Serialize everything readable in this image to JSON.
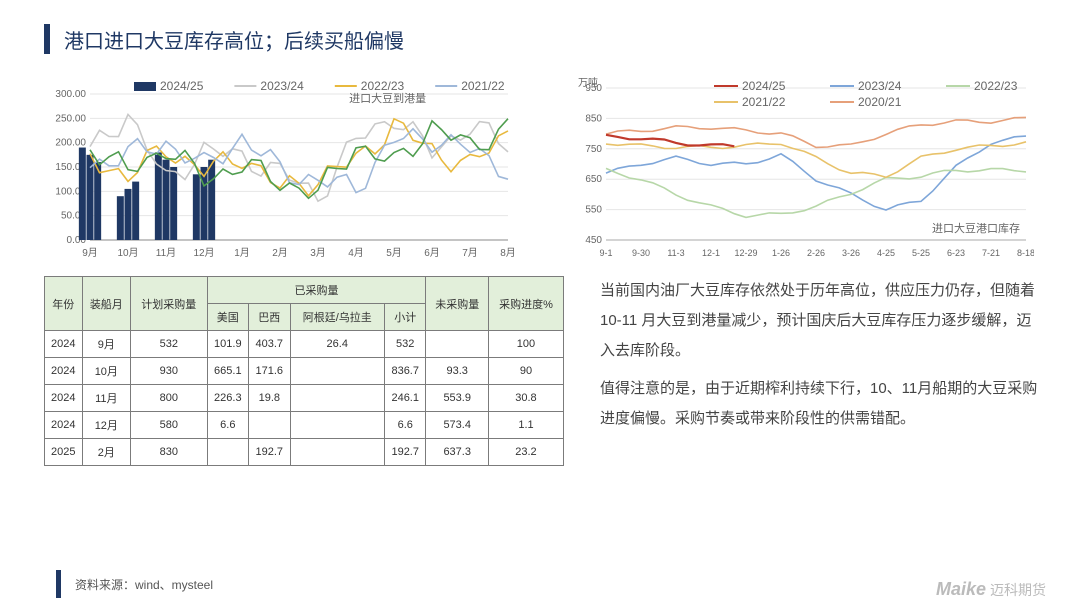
{
  "title": "港口进口大豆库存高位；后续买船偏慢",
  "source": "资料来源：wind、mysteel",
  "brand_en": "Maike",
  "brand_cn": "迈科期货",
  "chart1": {
    "type": "line+bar",
    "inner_title": "进口大豆到港量",
    "x_labels": [
      "9月",
      "10月",
      "11月",
      "12月",
      "1月",
      "2月",
      "3月",
      "4月",
      "5月",
      "6月",
      "7月",
      "8月"
    ],
    "ylim": [
      0,
      300
    ],
    "ytick_step": 50,
    "axis_color": "#888",
    "grid_color": "#e6e6e6",
    "tick_font": 10,
    "legend_font": 12,
    "series": [
      {
        "name": "2024/25",
        "color": "#1f3864",
        "type": "bar",
        "values": [
          175,
          105,
          165,
          150,
          null,
          null,
          null,
          null,
          null,
          null,
          null,
          null
        ]
      },
      {
        "name": "2023/24",
        "color": "#c9c9c9",
        "type": "line",
        "values": [
          180,
          260,
          120,
          185,
          170,
          140,
          90,
          205,
          255,
          180,
          235,
          195
        ]
      },
      {
        "name": "2022/23",
        "color": "#e8b93e",
        "type": "line",
        "values": [
          170,
          130,
          190,
          140,
          175,
          105,
          125,
          165,
          235,
          185,
          150,
          225
        ]
      },
      {
        "name": "2021/22",
        "color": "#9fb8d9",
        "type": "line",
        "values": [
          155,
          175,
          200,
          150,
          210,
          145,
          120,
          110,
          205,
          210,
          185,
          145
        ]
      },
      {
        "name": "2020/21",
        "color": "#4f9d4f",
        "type": "line",
        "values": [
          195,
          140,
          190,
          125,
          155,
          120,
          95,
          195,
          155,
          235,
          190,
          235
        ]
      }
    ]
  },
  "chart2": {
    "type": "line",
    "y_title": "万吨",
    "inner_title": "进口大豆港口库存",
    "x_labels": [
      "9-1",
      "9-30",
      "11-3",
      "12-1",
      "12-29",
      "1-26",
      "2-26",
      "3-26",
      "4-25",
      "5-25",
      "6-23",
      "7-21",
      "8-18"
    ],
    "ylim": [
      450,
      950
    ],
    "ytick_step": 100,
    "axis_color": "#888",
    "grid_color": "#e6e6e6",
    "tick_font": 10,
    "legend_font": 12,
    "series": [
      {
        "name": "2024/25",
        "color": "#c0392b",
        "width": 2.2,
        "values": [
          790,
          785,
          770,
          760,
          null,
          null,
          null,
          null,
          null,
          null,
          null,
          null,
          null
        ]
      },
      {
        "name": "2023/24",
        "color": "#7ea6d9",
        "values": [
          670,
          700,
          720,
          700,
          700,
          730,
          650,
          600,
          550,
          580,
          690,
          770,
          790
        ]
      },
      {
        "name": "2022/23",
        "color": "#b7d7a8",
        "values": [
          680,
          650,
          600,
          560,
          530,
          535,
          560,
          605,
          650,
          660,
          680,
          680,
          680
        ]
      },
      {
        "name": "2021/22",
        "color": "#e8c26a",
        "values": [
          770,
          760,
          755,
          755,
          760,
          770,
          720,
          670,
          660,
          720,
          750,
          760,
          770
        ]
      },
      {
        "name": "2020/21",
        "color": "#e6a07a",
        "values": [
          800,
          810,
          820,
          820,
          810,
          800,
          760,
          760,
          800,
          830,
          840,
          840,
          850
        ]
      }
    ]
  },
  "table": {
    "headers": {
      "year": "年份",
      "month": "装船月",
      "plan": "计划采购量",
      "group": "已采购量",
      "us": "美国",
      "brazil": "巴西",
      "arg": "阿根廷/乌拉圭",
      "subtotal": "小计",
      "unpurchased": "未采购量",
      "progress": "采购进度%"
    },
    "rows": [
      {
        "year": "2024",
        "month": "9月",
        "plan": "532",
        "us": "101.9",
        "brazil": "403.7",
        "arg": "26.4",
        "subtotal": "532",
        "unpurchased": "",
        "progress": "100"
      },
      {
        "year": "2024",
        "month": "10月",
        "plan": "930",
        "us": "665.1",
        "brazil": "171.6",
        "arg": "",
        "subtotal": "836.7",
        "unpurchased": "93.3",
        "progress": "90"
      },
      {
        "year": "2024",
        "month": "11月",
        "plan": "800",
        "us": "226.3",
        "brazil": "19.8",
        "arg": "",
        "subtotal": "246.1",
        "unpurchased": "553.9",
        "progress": "30.8"
      },
      {
        "year": "2024",
        "month": "12月",
        "plan": "580",
        "us": "6.6",
        "brazil": "",
        "arg": "",
        "subtotal": "6.6",
        "unpurchased": "573.4",
        "progress": "1.1"
      },
      {
        "year": "2025",
        "month": "2月",
        "plan": "830",
        "us": "",
        "brazil": "192.7",
        "arg": "",
        "subtotal": "192.7",
        "unpurchased": "637.3",
        "progress": "23.2"
      }
    ]
  },
  "paragraphs": [
    "当前国内油厂大豆库存依然处于历年高位，供应压力仍存，但随着 10-11 月大豆到港量减少，预计国庆后大豆库存压力逐步缓解，迈入去库阶段。",
    "值得注意的是，由于近期榨利持续下行，10、11月船期的大豆采购进度偏慢。采购节奏或带来阶段性的供需错配。"
  ]
}
